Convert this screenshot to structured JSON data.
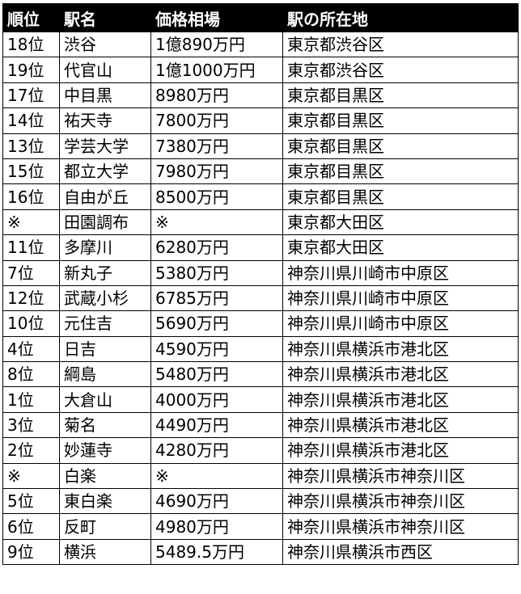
{
  "headers": [
    "順位",
    "駅名",
    "価格相場",
    "駅の所在地"
  ],
  "rows": [
    [
      "18位",
      "渋谷",
      "1億890万円",
      "東京都渋谷区"
    ],
    [
      "19位",
      "代官山",
      "1億1000万円",
      "東京都渋谷区"
    ],
    [
      "17位",
      "中目黒",
      "8980万円",
      "東京都目黒区"
    ],
    [
      "14位",
      "祐天寺",
      "7800万円",
      "東京都目黒区"
    ],
    [
      "13位",
      "学芸大学",
      "7380万円",
      "東京都目黒区"
    ],
    [
      "15位",
      "都立大学",
      "7980万円",
      "東京都目黒区"
    ],
    [
      "16位",
      "自由が丘",
      "8500万円",
      "東京都目黒区"
    ],
    [
      "※",
      "田園調布",
      "※",
      "東京都大田区"
    ],
    [
      "11位",
      "多摩川",
      "6280万円",
      "東京都大田区"
    ],
    [
      "7位",
      "新丸子",
      "5380万円",
      "神奈川県川崎市中原区"
    ],
    [
      "12位",
      "武蔵小杉",
      "6785万円",
      "神奈川県川崎市中原区"
    ],
    [
      "10位",
      "元住吉",
      "5690万円",
      "神奈川県川崎市中原区"
    ],
    [
      "4位",
      "日吉",
      "4590万円",
      "神奈川県横浜市港北区"
    ],
    [
      "8位",
      "綱島",
      "5480万円",
      "神奈川県横浜市港北区"
    ],
    [
      "1位",
      "大倉山",
      "4000万円",
      "神奈川県横浜市港北区"
    ],
    [
      "3位",
      "菊名",
      "4490万円",
      "神奈川県横浜市港北区"
    ],
    [
      "2位",
      "妙蓮寺",
      "4280万円",
      "神奈川県横浜市港北区"
    ],
    [
      "※",
      "白楽",
      "※",
      "神奈川県横浜市神奈川区"
    ],
    [
      "5位",
      "東白楽",
      "4690万円",
      "神奈川県横浜市神奈川区"
    ],
    [
      "6位",
      "反町",
      "4980万円",
      "神奈川県横浜市神奈川区"
    ],
    [
      "9位",
      "横浜",
      "5489.5万円",
      "神奈川県横浜市西区"
    ]
  ]
}
